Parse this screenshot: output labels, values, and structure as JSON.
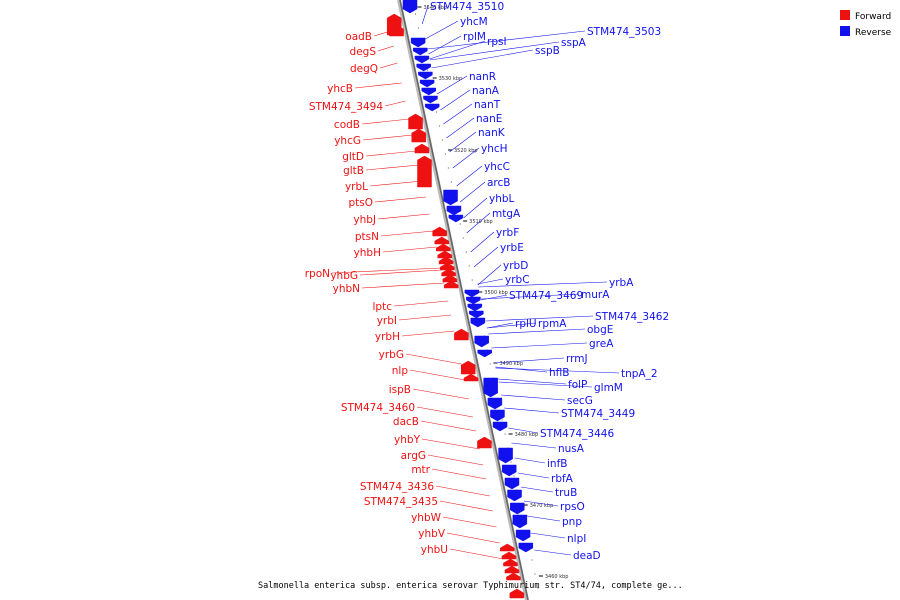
{
  "caption": "Salmonella enterica subsp. enterica serovar Typhimurium str. ST4/74, complete ge...",
  "colors": {
    "forward": "#ee1111",
    "reverse": "#1111ee",
    "backbone": "#888888"
  },
  "legend": [
    {
      "label": "Forward",
      "color": "#ee1111"
    },
    {
      "label": "Reverse",
      "color": "#1111ee"
    }
  ],
  "ticks": [
    "3540 kbp",
    "3530 kbp",
    "3520 kbp",
    "3510 kbp",
    "3500 kbp",
    "3490 kbp",
    "3480 kbp",
    "3470 kbp",
    "3460 kbp"
  ],
  "genes_left": [
    "oadB",
    "degS",
    "degQ",
    "yhcB",
    "STM474_3494",
    "codB",
    "yhcG",
    "gltD",
    "gltB",
    "yrbL",
    "ptsO",
    "yhbJ",
    "ptsN",
    "yhbH",
    "rpoN",
    "yhbG",
    "yhbN",
    "lptc",
    "yrbI",
    "yrbH",
    "yrbG",
    "nlp",
    "ispB",
    "STM474_3460",
    "dacB",
    "yhbY",
    "argG",
    "mtr",
    "STM474_3436",
    "STM474_3435",
    "yhbW",
    "yhbV",
    "yhbU"
  ],
  "genes_right": [
    "STM474_3510",
    "yhcM",
    "rplM",
    "rpsI",
    "STM474_3503",
    "sspA",
    "sspB",
    "nanR",
    "nanA",
    "nanT",
    "nanE",
    "nanK",
    "yhcH",
    "yhcC",
    "arcB",
    "yhbL",
    "mtgA",
    "yrbF",
    "yrbE",
    "yrbD",
    "yrbC",
    "yrbA",
    "STM474_3469",
    "murA",
    "STM474_3462",
    "rplU",
    "rpmA",
    "obgE",
    "greA",
    "rrmJ",
    "hflB",
    "tnpA_2",
    "folP",
    "glmM",
    "secG",
    "STM474_3449",
    "STM474_3446",
    "nusA",
    "infB",
    "rbfA",
    "truB",
    "rpsO",
    "pnp",
    "nlpI",
    "deaD"
  ]
}
